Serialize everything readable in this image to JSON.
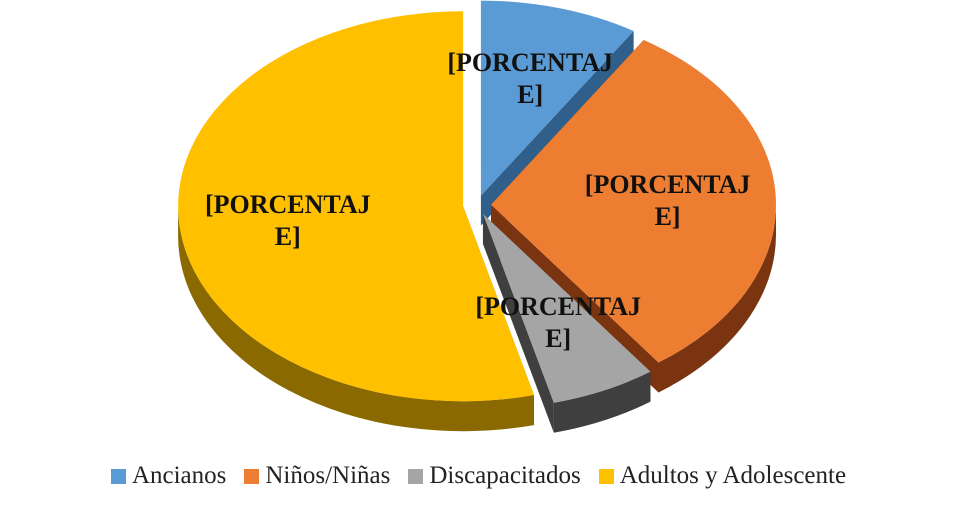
{
  "chart_data": {
    "type": "pie",
    "categories": [
      "Ancianos",
      "Niños/Niñas",
      "Discapacitados",
      "Adultos y Adolescente"
    ],
    "values": [
      9,
      31,
      6,
      54
    ],
    "value_labels": [
      "[PORCENTAJE]",
      "[PORCENTAJE]",
      "[PORCENTAJE]",
      "[PORCENTAJE]"
    ],
    "colors": [
      "#5b9bd5",
      "#ed7d31",
      "#a5a5a5",
      "#ffc000"
    ],
    "side_colors": [
      "#2f5f8a",
      "#7a3410",
      "#3f3f3f",
      "#8a6a00"
    ],
    "legend": "bottom"
  }
}
